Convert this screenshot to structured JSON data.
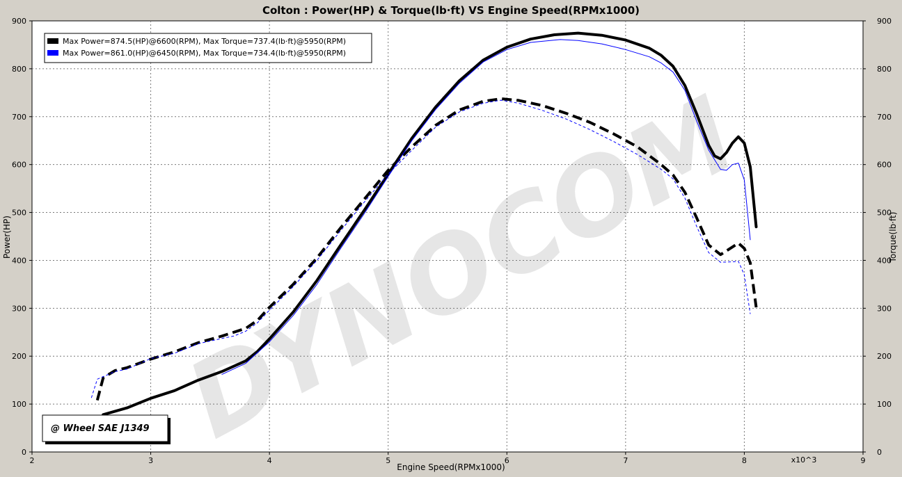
{
  "chart_data": {
    "type": "line",
    "title": "Colton : Power(HP) & Torque(lb·ft) VS Engine Speed(RPMx1000)",
    "xlabel": "Engine Speed(RPMx1000)",
    "x_multiplier_label": "x10^3",
    "ylabel_left": "Power(HP)",
    "ylabel_right": "Torque(lb·ft)",
    "xlim": [
      2,
      9
    ],
    "ylim": [
      0,
      900
    ],
    "x_ticks": [
      2,
      3,
      4,
      5,
      6,
      7,
      8,
      9
    ],
    "y_ticks": [
      0,
      100,
      200,
      300,
      400,
      500,
      600,
      700,
      800,
      900
    ],
    "grid": true,
    "legend_position": "top-left",
    "watermark": "DYNOCOM",
    "stamp": "@ Wheel SAE J1349",
    "series": [
      {
        "name": "Max Power=874.5(HP)@6600(RPM), Max Torque=737.4(lb·ft)@5950(RPM)",
        "color": "#000000",
        "power": [
          [
            2.6,
            78
          ],
          [
            2.8,
            92
          ],
          [
            3.0,
            112
          ],
          [
            3.2,
            128
          ],
          [
            3.4,
            150
          ],
          [
            3.6,
            168
          ],
          [
            3.8,
            190
          ],
          [
            3.9,
            210
          ],
          [
            4.0,
            236
          ],
          [
            4.2,
            292
          ],
          [
            4.4,
            358
          ],
          [
            4.6,
            432
          ],
          [
            4.8,
            505
          ],
          [
            5.0,
            580
          ],
          [
            5.2,
            655
          ],
          [
            5.4,
            720
          ],
          [
            5.6,
            775
          ],
          [
            5.8,
            818
          ],
          [
            6.0,
            845
          ],
          [
            6.2,
            862
          ],
          [
            6.4,
            871
          ],
          [
            6.6,
            874.5
          ],
          [
            6.8,
            870
          ],
          [
            7.0,
            860
          ],
          [
            7.2,
            843
          ],
          [
            7.3,
            828
          ],
          [
            7.4,
            805
          ],
          [
            7.5,
            765
          ],
          [
            7.6,
            705
          ],
          [
            7.7,
            640
          ],
          [
            7.75,
            618
          ],
          [
            7.8,
            612
          ],
          [
            7.85,
            625
          ],
          [
            7.9,
            645
          ],
          [
            7.95,
            658
          ],
          [
            8.0,
            645
          ],
          [
            8.05,
            595
          ],
          [
            8.1,
            470
          ]
        ],
        "torque": [
          [
            2.55,
            108
          ],
          [
            2.6,
            155
          ],
          [
            2.7,
            170
          ],
          [
            2.8,
            176
          ],
          [
            3.0,
            194
          ],
          [
            3.2,
            209
          ],
          [
            3.4,
            228
          ],
          [
            3.6,
            242
          ],
          [
            3.8,
            258
          ],
          [
            3.9,
            275
          ],
          [
            4.0,
            302
          ],
          [
            4.2,
            350
          ],
          [
            4.4,
            405
          ],
          [
            4.6,
            468
          ],
          [
            4.8,
            528
          ],
          [
            5.0,
            588
          ],
          [
            5.2,
            637
          ],
          [
            5.4,
            682
          ],
          [
            5.6,
            714
          ],
          [
            5.8,
            732
          ],
          [
            5.95,
            737.4
          ],
          [
            6.1,
            734
          ],
          [
            6.3,
            723
          ],
          [
            6.5,
            707
          ],
          [
            6.7,
            688
          ],
          [
            6.9,
            664
          ],
          [
            7.1,
            637
          ],
          [
            7.3,
            600
          ],
          [
            7.4,
            578
          ],
          [
            7.5,
            542
          ],
          [
            7.6,
            488
          ],
          [
            7.7,
            432
          ],
          [
            7.8,
            412
          ],
          [
            7.9,
            428
          ],
          [
            7.95,
            436
          ],
          [
            8.0,
            425
          ],
          [
            8.05,
            395
          ],
          [
            8.1,
            302
          ]
        ]
      },
      {
        "name": "Max Power=861.0(HP)@6450(RPM), Max Torque=734.4(lb·ft)@5950(RPM)",
        "color": "#0000ff",
        "power": [
          [
            3.6,
            162
          ],
          [
            3.8,
            185
          ],
          [
            4.0,
            230
          ],
          [
            4.2,
            285
          ],
          [
            4.4,
            350
          ],
          [
            4.6,
            425
          ],
          [
            4.8,
            498
          ],
          [
            5.0,
            575
          ],
          [
            5.2,
            650
          ],
          [
            5.4,
            715
          ],
          [
            5.6,
            770
          ],
          [
            5.8,
            814
          ],
          [
            6.0,
            840
          ],
          [
            6.2,
            855
          ],
          [
            6.45,
            861
          ],
          [
            6.6,
            859
          ],
          [
            6.8,
            852
          ],
          [
            7.0,
            840
          ],
          [
            7.2,
            825
          ],
          [
            7.3,
            812
          ],
          [
            7.4,
            793
          ],
          [
            7.5,
            755
          ],
          [
            7.6,
            690
          ],
          [
            7.7,
            630
          ],
          [
            7.8,
            590
          ],
          [
            7.85,
            588
          ],
          [
            7.9,
            600
          ],
          [
            7.95,
            603
          ],
          [
            8.0,
            568
          ],
          [
            8.05,
            443
          ]
        ],
        "torque": [
          [
            2.5,
            113
          ],
          [
            2.55,
            152
          ],
          [
            2.7,
            168
          ],
          [
            2.8,
            173
          ],
          [
            3.0,
            195
          ],
          [
            3.2,
            206
          ],
          [
            3.4,
            226
          ],
          [
            3.6,
            237
          ],
          [
            3.7,
            242
          ],
          [
            3.8,
            252
          ],
          [
            3.9,
            270
          ],
          [
            4.0,
            296
          ],
          [
            4.2,
            345
          ],
          [
            4.4,
            400
          ],
          [
            4.6,
            462
          ],
          [
            4.8,
            522
          ],
          [
            5.0,
            580
          ],
          [
            5.2,
            630
          ],
          [
            5.4,
            678
          ],
          [
            5.6,
            710
          ],
          [
            5.8,
            728
          ],
          [
            5.95,
            734.4
          ],
          [
            6.1,
            728
          ],
          [
            6.3,
            713
          ],
          [
            6.5,
            695
          ],
          [
            6.7,
            673
          ],
          [
            6.9,
            648
          ],
          [
            7.1,
            621
          ],
          [
            7.3,
            590
          ],
          [
            7.4,
            570
          ],
          [
            7.5,
            530
          ],
          [
            7.6,
            470
          ],
          [
            7.7,
            416
          ],
          [
            7.8,
            396
          ],
          [
            7.9,
            397
          ],
          [
            7.95,
            398
          ],
          [
            8.0,
            370
          ],
          [
            8.05,
            288
          ]
        ]
      }
    ]
  }
}
